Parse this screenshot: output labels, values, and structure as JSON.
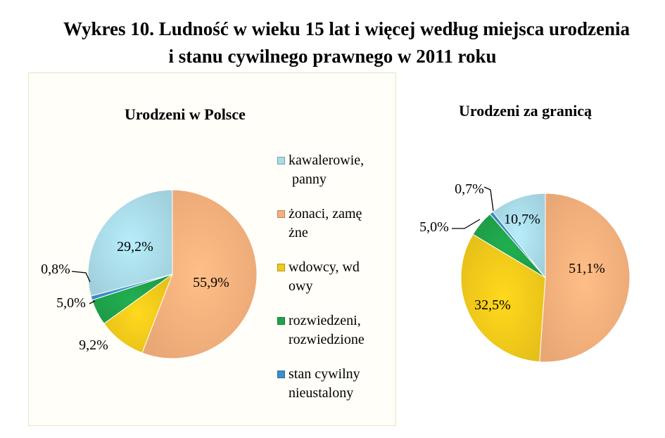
{
  "title": {
    "line1": "Wykres 10. Ludność w wieku 15 lat i więcej według miejsca urodzenia",
    "line2": "i stanu cywilnego prawnego w 2011 roku"
  },
  "legend": [
    {
      "label": "kawalerowie,",
      "label2": " panny",
      "color": "#a9dbe8"
    },
    {
      "label": "żonaci, zamę",
      "label2": "żne",
      "color": "#f5b07c"
    },
    {
      "label": "wdowcy, wd",
      "label2": "owy",
      "color": "#f2c91a"
    },
    {
      "label": "rozwiedzeni,",
      "label2": "rozwiedzione",
      "color": "#1fa24a"
    },
    {
      "label": "stan cywilny",
      "label2": "nieustalony",
      "color": "#3f8fc8"
    }
  ],
  "chart_data": [
    {
      "type": "pie",
      "title": "Urodzeni w Polsce",
      "categories": [
        "kawalerowie, panny",
        "żonaci, zamężne",
        "wdowcy, wdowy",
        "rozwiedzeni, rozwiedzione",
        "stan cywilny nieustalony"
      ],
      "values": [
        29.2,
        55.9,
        9.2,
        5.0,
        0.8
      ],
      "labels": [
        "29,2%",
        "55,9%",
        "9,2%",
        "5,0%",
        "0,8%"
      ]
    },
    {
      "type": "pie",
      "title": "Urodzeni za granicą",
      "categories": [
        "kawalerowie, panny",
        "żonaci, zamężne",
        "wdowcy, wdowy",
        "rozwiedzeni, rozwiedzione",
        "stan cywilny nieustalony"
      ],
      "values": [
        10.7,
        51.1,
        32.5,
        5.0,
        0.7
      ],
      "labels": [
        "10,7%",
        "51,1%",
        "32,5%",
        "5,0%",
        "0,7%"
      ]
    }
  ]
}
